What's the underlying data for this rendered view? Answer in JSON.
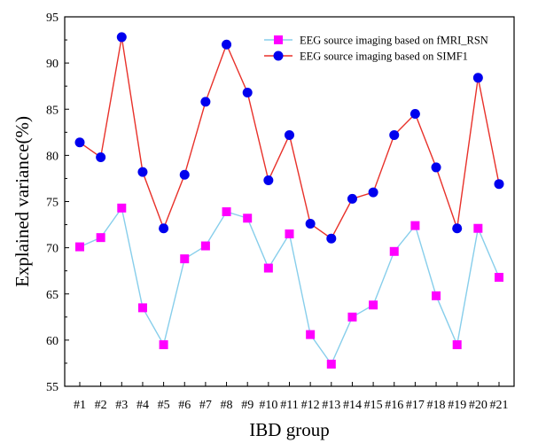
{
  "chart_data": {
    "type": "line",
    "title": "",
    "xlabel": "IBD group",
    "ylabel": "Explained variance(%)",
    "categories": [
      "#1",
      "#2",
      "#3",
      "#4",
      "#5",
      "#6",
      "#7",
      "#8",
      "#9",
      "#10",
      "#11",
      "#12",
      "#13",
      "#14",
      "#15",
      "#16",
      "#17",
      "#18",
      "#19",
      "#20",
      "#21"
    ],
    "ylim": [
      55,
      95
    ],
    "yticks": [
      55,
      60,
      65,
      70,
      75,
      80,
      85,
      90,
      95
    ],
    "legend_position": "top-right",
    "series": [
      {
        "name": "EEG source imaging based on fMRI_RSN",
        "line_color": "#87CEEB",
        "marker": "square",
        "marker_color": "#FF00FF",
        "values": [
          70.1,
          71.1,
          74.3,
          63.5,
          59.5,
          68.8,
          70.2,
          73.9,
          73.2,
          67.8,
          71.5,
          60.6,
          57.4,
          62.5,
          63.8,
          69.6,
          72.4,
          64.8,
          59.5,
          72.1,
          66.8
        ]
      },
      {
        "name": "EEG source imaging based on SIMF1",
        "line_color": "#E8312A",
        "marker": "circle",
        "marker_color": "#0000EE",
        "values": [
          81.4,
          79.8,
          92.8,
          78.2,
          72.1,
          77.9,
          85.8,
          92.0,
          86.8,
          77.3,
          82.2,
          72.6,
          71.0,
          75.3,
          76.0,
          82.2,
          84.5,
          78.7,
          72.1,
          88.4,
          76.9
        ]
      }
    ]
  }
}
